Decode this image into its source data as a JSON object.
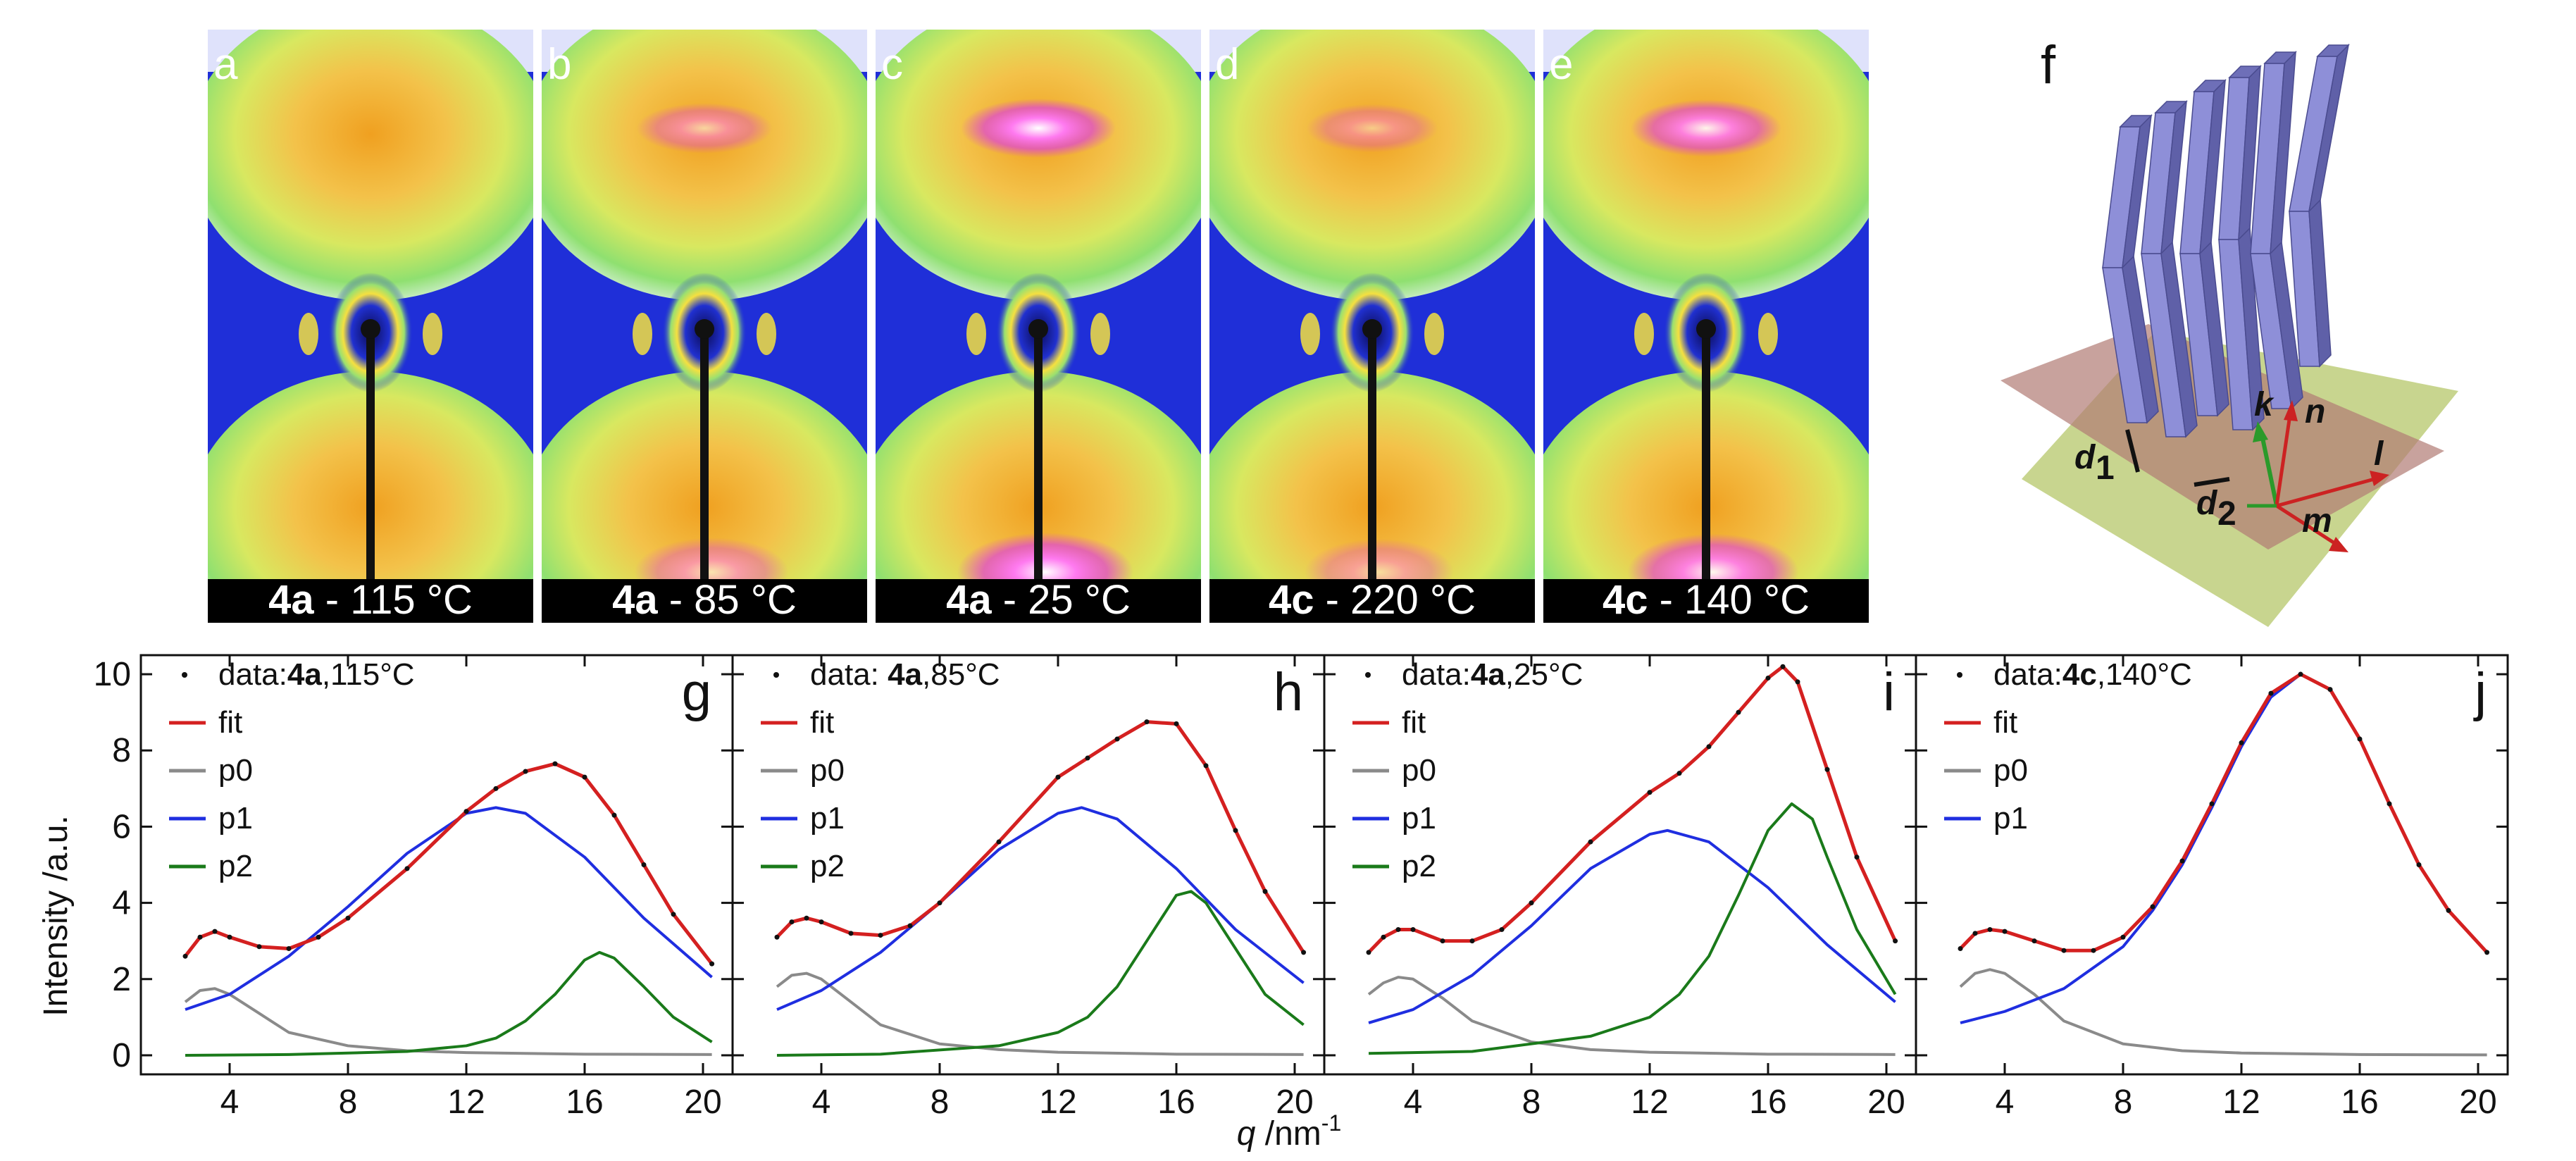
{
  "figure": {
    "saxs_panels": [
      {
        "letter": "a",
        "sample": "4a",
        "temp": "115 °C"
      },
      {
        "letter": "b",
        "sample": "4a",
        "temp": "85 °C"
      },
      {
        "letter": "c",
        "sample": "4a",
        "temp": "25 °C"
      },
      {
        "letter": "d",
        "sample": "4c",
        "temp": "220 °C"
      },
      {
        "letter": "e",
        "sample": "4c",
        "temp": "140 °C"
      }
    ],
    "model_panel": {
      "letter": "f",
      "labels": {
        "k": "k",
        "n": "n",
        "l": "l",
        "m": "m",
        "d1": "d",
        "d1_sub": "1",
        "d2": "d",
        "d2_sub": "2"
      }
    },
    "colors": {
      "fit": "#d42020",
      "p0": "#8a8a8a",
      "p1": "#1f2ee0",
      "p2": "#1a7a1a",
      "data": "#111111",
      "rod": "#8e8fd8",
      "rod_dark": "#5f60a8",
      "plane_red": "#b07b74",
      "plane_green": "#b6c76a"
    }
  },
  "chart_data": [
    {
      "type": "line",
      "letter": "g",
      "legend_data_prefix": "data:",
      "legend_data_sample": "4a",
      "legend_data_temp": ",115°C",
      "xlabel": "",
      "ylabel": "Intensity /a.u.",
      "xlim": [
        1,
        21
      ],
      "ylim": [
        -0.5,
        10.5
      ],
      "xticks": [
        4,
        8,
        12,
        16,
        20
      ],
      "yticks": [
        0,
        2,
        4,
        6,
        8,
        10
      ],
      "series": [
        {
          "name": "fit",
          "x": [
            2.5,
            3,
            3.5,
            4,
            5,
            6,
            7,
            8,
            10,
            12,
            13,
            14,
            15,
            16,
            17,
            18,
            19,
            20.3
          ],
          "values": [
            2.6,
            3.1,
            3.25,
            3.1,
            2.85,
            2.8,
            3.1,
            3.6,
            4.9,
            6.4,
            7.0,
            7.45,
            7.65,
            7.3,
            6.3,
            5.0,
            3.7,
            2.4
          ]
        },
        {
          "name": "p0",
          "x": [
            2.5,
            3,
            3.5,
            4,
            5,
            6,
            8,
            10,
            12,
            16,
            20.3
          ],
          "values": [
            1.4,
            1.7,
            1.75,
            1.6,
            1.1,
            0.6,
            0.25,
            0.12,
            0.07,
            0.03,
            0.02
          ]
        },
        {
          "name": "p1",
          "x": [
            2.5,
            4,
            6,
            8,
            10,
            12,
            13,
            14,
            16,
            18,
            20.3
          ],
          "values": [
            1.2,
            1.6,
            2.6,
            3.9,
            5.3,
            6.35,
            6.5,
            6.35,
            5.2,
            3.6,
            2.05
          ]
        },
        {
          "name": "p2",
          "x": [
            2.5,
            6,
            10,
            12,
            13,
            14,
            15,
            16,
            16.5,
            17,
            18,
            19,
            20.3
          ],
          "values": [
            0.0,
            0.02,
            0.1,
            0.25,
            0.45,
            0.9,
            1.6,
            2.5,
            2.7,
            2.55,
            1.8,
            1.0,
            0.35
          ]
        }
      ]
    },
    {
      "type": "line",
      "letter": "h",
      "legend_data_prefix": "data: ",
      "legend_data_sample": "4a",
      "legend_data_temp": ",85°C",
      "xlabel": "",
      "ylabel": "",
      "xlim": [
        1,
        21
      ],
      "ylim": [
        -0.5,
        10.5
      ],
      "xticks": [
        4,
        8,
        12,
        16,
        20
      ],
      "yticks": [
        0,
        2,
        4,
        6,
        8,
        10
      ],
      "series": [
        {
          "name": "fit",
          "x": [
            2.5,
            3,
            3.5,
            4,
            5,
            6,
            7,
            8,
            10,
            12,
            13,
            14,
            15,
            16,
            17,
            18,
            19,
            20.3
          ],
          "values": [
            3.1,
            3.5,
            3.6,
            3.5,
            3.2,
            3.15,
            3.4,
            4.0,
            5.6,
            7.3,
            7.8,
            8.3,
            8.75,
            8.7,
            7.6,
            5.9,
            4.3,
            2.7
          ]
        },
        {
          "name": "p0",
          "x": [
            2.5,
            3,
            3.5,
            4,
            5,
            6,
            8,
            10,
            12,
            16,
            20.3
          ],
          "values": [
            1.8,
            2.1,
            2.15,
            2.0,
            1.4,
            0.8,
            0.3,
            0.15,
            0.08,
            0.03,
            0.02
          ]
        },
        {
          "name": "p1",
          "x": [
            2.5,
            4,
            6,
            8,
            10,
            12,
            12.8,
            14,
            16,
            18,
            20.3
          ],
          "values": [
            1.2,
            1.7,
            2.7,
            4.0,
            5.4,
            6.35,
            6.5,
            6.2,
            4.9,
            3.3,
            1.9
          ]
        },
        {
          "name": "p2",
          "x": [
            2.5,
            6,
            10,
            12,
            13,
            14,
            15,
            16,
            16.5,
            17,
            18,
            19,
            20.3
          ],
          "values": [
            0.0,
            0.03,
            0.25,
            0.6,
            1.0,
            1.8,
            3.0,
            4.2,
            4.3,
            4.0,
            2.8,
            1.6,
            0.8
          ]
        }
      ]
    },
    {
      "type": "line",
      "letter": "i",
      "legend_data_prefix": "data:",
      "legend_data_sample": "4a",
      "legend_data_temp": ",25°C",
      "xlabel": "",
      "ylabel": "",
      "xlim": [
        1,
        21
      ],
      "ylim": [
        -0.5,
        10.5
      ],
      "xticks": [
        4,
        8,
        12,
        16,
        20
      ],
      "yticks": [
        0,
        2,
        4,
        6,
        8,
        10
      ],
      "series": [
        {
          "name": "fit",
          "x": [
            2.5,
            3,
            3.5,
            4,
            5,
            6,
            7,
            8,
            10,
            12,
            13,
            14,
            15,
            16,
            16.5,
            17,
            18,
            19,
            20.3
          ],
          "values": [
            2.7,
            3.1,
            3.3,
            3.3,
            3.0,
            3.0,
            3.3,
            4.0,
            5.6,
            6.9,
            7.4,
            8.1,
            9.0,
            9.9,
            10.2,
            9.8,
            7.5,
            5.2,
            3.0
          ]
        },
        {
          "name": "p0",
          "x": [
            2.5,
            3,
            3.5,
            4,
            5,
            6,
            8,
            10,
            12,
            16,
            20.3
          ],
          "values": [
            1.6,
            1.9,
            2.05,
            2.0,
            1.5,
            0.9,
            0.35,
            0.15,
            0.08,
            0.03,
            0.02
          ]
        },
        {
          "name": "p1",
          "x": [
            2.5,
            4,
            6,
            8,
            10,
            12,
            12.6,
            14,
            16,
            18,
            20.3
          ],
          "values": [
            0.85,
            1.2,
            2.1,
            3.4,
            4.9,
            5.8,
            5.9,
            5.6,
            4.4,
            2.9,
            1.4
          ]
        },
        {
          "name": "p2",
          "x": [
            2.5,
            6,
            10,
            12,
            13,
            14,
            15,
            16,
            16.8,
            17.5,
            18,
            19,
            20.3
          ],
          "values": [
            0.05,
            0.1,
            0.5,
            1.0,
            1.6,
            2.6,
            4.2,
            5.9,
            6.6,
            6.2,
            5.2,
            3.3,
            1.6
          ]
        }
      ]
    },
    {
      "type": "line",
      "letter": "j",
      "legend_data_prefix": "data:",
      "legend_data_sample": "4c",
      "legend_data_temp": ",140°C",
      "xlabel": "",
      "ylabel": "",
      "xlim": [
        1,
        21
      ],
      "ylim": [
        -0.5,
        10.5
      ],
      "xticks": [
        4,
        8,
        12,
        16,
        20
      ],
      "yticks": [
        0,
        2,
        4,
        6,
        8,
        10
      ],
      "series": [
        {
          "name": "fit",
          "x": [
            2.5,
            3,
            3.5,
            4,
            5,
            6,
            7,
            8,
            9,
            10,
            11,
            12,
            13,
            14,
            15,
            16,
            17,
            18,
            19,
            20.3
          ],
          "values": [
            2.8,
            3.2,
            3.3,
            3.25,
            3.0,
            2.75,
            2.75,
            3.1,
            3.9,
            5.1,
            6.6,
            8.2,
            9.5,
            10.0,
            9.6,
            8.3,
            6.6,
            5.0,
            3.8,
            2.7
          ]
        },
        {
          "name": "p0",
          "x": [
            2.5,
            3,
            3.5,
            4,
            5,
            6,
            8,
            10,
            12,
            16,
            20.3
          ],
          "values": [
            1.8,
            2.15,
            2.25,
            2.15,
            1.6,
            0.9,
            0.3,
            0.12,
            0.06,
            0.02,
            0.01
          ]
        },
        {
          "name": "p1",
          "x": [
            2.5,
            4,
            6,
            8,
            9,
            10,
            11,
            12,
            13,
            14,
            15,
            16,
            17,
            18,
            19,
            20.3
          ],
          "values": [
            0.85,
            1.15,
            1.75,
            2.85,
            3.8,
            5.0,
            6.5,
            8.1,
            9.4,
            10.0,
            9.6,
            8.3,
            6.6,
            5.0,
            3.8,
            2.7
          ]
        }
      ]
    }
  ],
  "axes": {
    "xlabel_q": "q",
    "xlabel_unit": " /nm",
    "xlabel_exp": "-1"
  }
}
